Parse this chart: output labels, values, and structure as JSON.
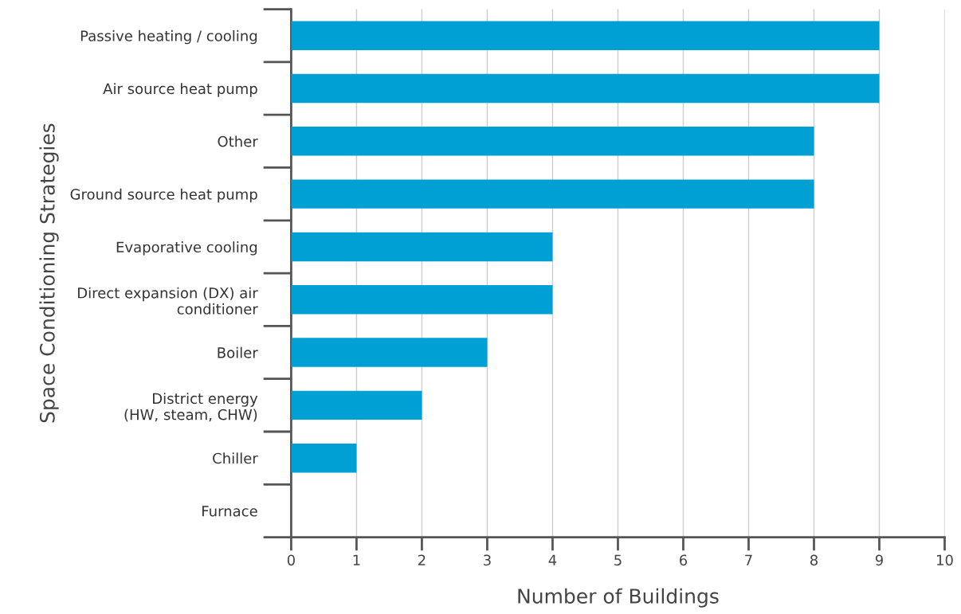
{
  "chart_data": {
    "type": "bar",
    "orientation": "horizontal",
    "categories": [
      "Passive heating / cooling",
      "Air source heat pump",
      "Other",
      "Ground source heat pump",
      "Evaporative cooling",
      "Direct expansion (DX) air\nconditioner",
      "Boiler",
      "District energy\n(HW, steam, CHW)",
      "Chiller",
      "Furnace"
    ],
    "values": [
      9,
      9,
      8,
      8,
      4,
      4,
      3,
      2,
      1,
      0
    ],
    "color": "#009fd4",
    "xlabel": "Number of Buildings",
    "ylabel": "Space Conditioning Strategies",
    "xlim": [
      0,
      10
    ],
    "xticks": [
      0,
      1,
      2,
      3,
      4,
      5,
      6,
      7,
      8,
      9,
      10
    ],
    "grid": "x"
  }
}
